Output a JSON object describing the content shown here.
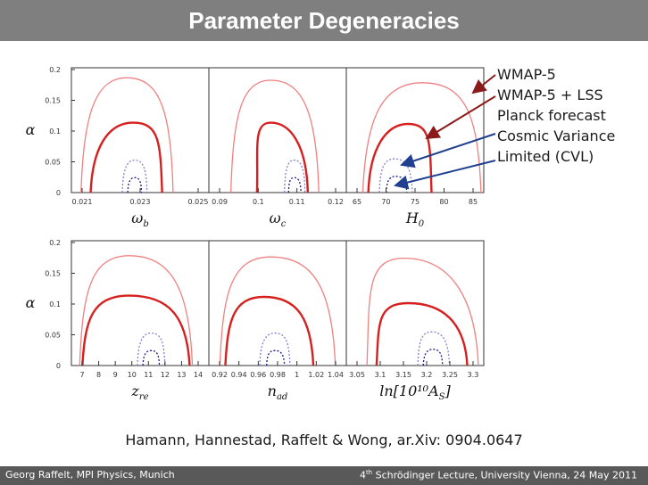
{
  "slide": {
    "title": "Parameter Degeneracies",
    "citation": "Hamann, Hannestad, Raffelt & Wong, ar.Xiv: 0904.0647",
    "footer_left": "Georg Raffelt, MPI Physics, Munich",
    "footer_right_pre": "4",
    "footer_right_sup": "th",
    "footer_right_post": " Schrödinger Lecture, University Vienna, 24 May 2011"
  },
  "legend": [
    {
      "label": "WMAP-5",
      "color": "#f08080"
    },
    {
      "label": "WMAP-5 + LSS",
      "color": "#d62020"
    },
    {
      "label": "Planck forecast",
      "color": "#8080d0"
    },
    {
      "label": "Cosmic Variance",
      "color": "#1a1a8c"
    },
    {
      "label": "Limited (CVL)",
      "color": "#1a1a8c"
    }
  ],
  "arrow_colors": {
    "red": "#8b1a1a",
    "blue": "#1f3f8f"
  },
  "chart_data": {
    "type": "contour",
    "ylabel": "α",
    "y_ticks": [
      "0",
      "0.05",
      "0.1",
      "0.15",
      "0.2"
    ],
    "ylim": [
      0,
      0.2
    ],
    "panels": [
      {
        "xlabel": "ω",
        "xlabel_sub": "b",
        "ticks": [
          "0.021",
          "0.023",
          "0.025"
        ]
      },
      {
        "xlabel": "ω",
        "xlabel_sub": "c",
        "ticks": [
          "0.09",
          "0.1",
          "0.11",
          "0.12"
        ]
      },
      {
        "xlabel": "H",
        "xlabel_sub": "0",
        "ticks": [
          "65",
          "70",
          "75",
          "80",
          "85"
        ]
      },
      {
        "xlabel": "z",
        "xlabel_sub": "re",
        "ticks": [
          "7",
          "8",
          "9",
          "10",
          "11",
          "12",
          "13",
          "14"
        ]
      },
      {
        "xlabel": "n",
        "xlabel_sub": "ad",
        "ticks": [
          "0.92",
          "0.94",
          "0.96",
          "0.98",
          "1",
          "1.02",
          "1.04"
        ]
      },
      {
        "xlabel": "ln[10¹⁰A",
        "xlabel_sub": "S",
        "xlabel_post": "]",
        "ticks": [
          "3.05",
          "3.1",
          "3.15",
          "3.2",
          "3.25",
          "3.3"
        ]
      }
    ],
    "datasets": [
      {
        "name": "WMAP-5",
        "color": "#f08080",
        "style": "solid"
      },
      {
        "name": "WMAP-5 + LSS",
        "color": "#d62020",
        "style": "solid"
      },
      {
        "name": "Planck forecast",
        "color": "#8080d0",
        "style": "dotted"
      },
      {
        "name": "Cosmic Variance Limited (CVL)",
        "color": "#1a1a8c",
        "style": "dotted"
      }
    ]
  }
}
